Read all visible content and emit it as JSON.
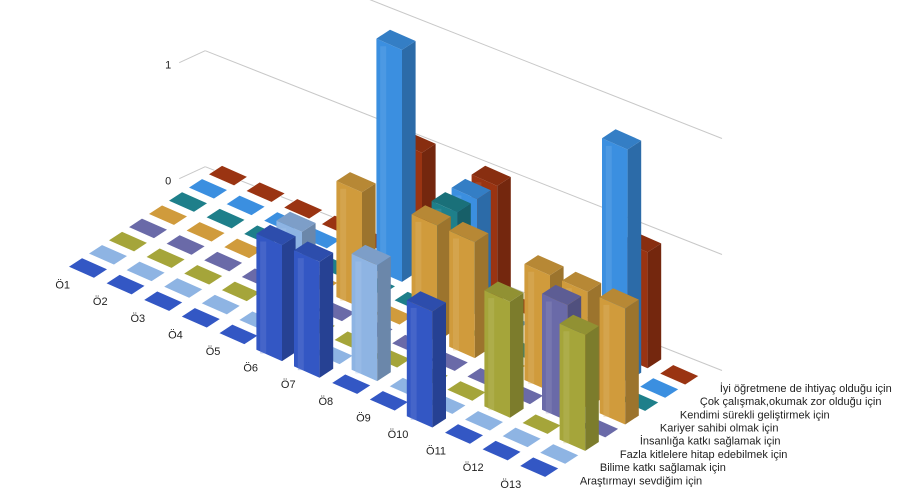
{
  "chart_data": {
    "type": "bar",
    "subtype": "3d-column",
    "categories": [
      "Ö1",
      "Ö2",
      "Ö3",
      "Ö4",
      "Ö5",
      "Ö6",
      "Ö7",
      "Ö8",
      "Ö9",
      "Ö10",
      "Ö11",
      "Ö12",
      "Ö13"
    ],
    "ylim": [
      0,
      2
    ],
    "yticks": [
      "0",
      "1",
      "2"
    ],
    "grid": true,
    "series": [
      {
        "name": "Araştırmayı sevdiğim için",
        "color": "#3357c4",
        "values": [
          0,
          0,
          0,
          0,
          0,
          1,
          1,
          0,
          0,
          1,
          0,
          0,
          0
        ]
      },
      {
        "name": "Bilime katkı sağlamak için",
        "color": "#8eb4e3",
        "values": [
          0,
          0,
          0,
          0,
          0,
          1,
          0,
          1,
          0,
          0,
          0,
          0,
          0
        ]
      },
      {
        "name": "Fazla kitlelere hitap edebilmek için",
        "color": "#a5a53a",
        "values": [
          0,
          0,
          0,
          0,
          0,
          0,
          0,
          0,
          0,
          0,
          1,
          0,
          1
        ]
      },
      {
        "name": "İnsanlığa katkı sağlamak için",
        "color": "#6a6aa8",
        "values": [
          0,
          0,
          0,
          0,
          0,
          0,
          0,
          0,
          0,
          0,
          0,
          1,
          0
        ]
      },
      {
        "name": "Kariyer sahibi olmak için",
        "color": "#d09b3c",
        "values": [
          0,
          0,
          0,
          0,
          0,
          1,
          0,
          1,
          1,
          0,
          1,
          1,
          1
        ]
      },
      {
        "name": "Kendimi sürekli geliştirmek için",
        "color": "#1e7f8a",
        "values": [
          0,
          0,
          0,
          0,
          0,
          0,
          0,
          1,
          0,
          0,
          0,
          0,
          0
        ]
      },
      {
        "name": "Çok çalışmak,okumak zor olduğu için",
        "color": "#3b8fe0",
        "values": [
          0,
          0,
          0,
          0,
          0,
          2,
          0,
          1,
          0,
          0,
          0,
          2,
          0
        ]
      },
      {
        "name": "İyi öğretmene de ihtiyaç olduğu için",
        "color": "#9a3412",
        "values": [
          0,
          0,
          0,
          0,
          0,
          1,
          0,
          1,
          0,
          0,
          0,
          1,
          0
        ]
      }
    ]
  }
}
